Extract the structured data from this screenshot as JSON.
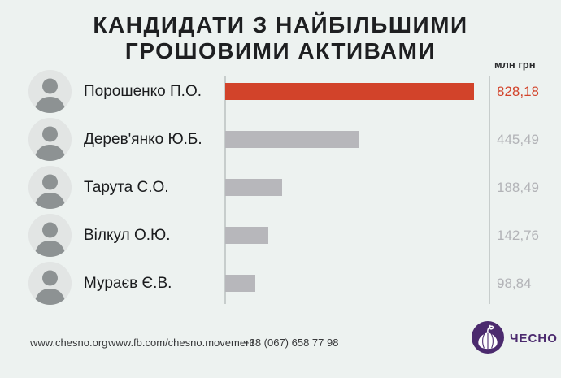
{
  "title": {
    "line1": "КАНДИДАТИ З НАЙБІЛЬШИМИ",
    "line2": "ГРОШОВИМИ АКТИВАМИ"
  },
  "unit_label": "млн грн",
  "chart_data": {
    "type": "bar",
    "orientation": "horizontal",
    "title": "КАНДИДАТИ З НАЙБІЛЬШИМИ ГРОШОВИМИ АКТИВАМИ",
    "unit": "млн грн",
    "categories": [
      "Порошенко П.О.",
      "Дерев'янко Ю.Б.",
      "Тарута С.О.",
      "Вілкул О.Ю.",
      "Мураєв Є.В."
    ],
    "values": [
      828.18,
      445.49,
      188.49,
      142.76,
      98.84
    ],
    "value_labels": [
      "828,18",
      "445,49",
      "188,49",
      "142,76",
      "98,84"
    ],
    "xlim": [
      0,
      828.18
    ],
    "grid": false,
    "legend": false,
    "highlight_index": 0,
    "highlight_color": "#d2432a",
    "bar_color": "#b7b7bb"
  },
  "footer": {
    "website": "www.chesno.org",
    "facebook": "www.fb.com/chesno.movement",
    "phone": "+38 (067) 658 77 98",
    "logo_text": "ЧЕСНО"
  },
  "colors": {
    "background": "#edf2f0",
    "accent_red": "#d2432a",
    "bar_gray": "#b7b7bb",
    "value_gray": "#b2b3b7",
    "axis_line": "#c7cdcc",
    "logo_purple": "#4b2a6e"
  }
}
